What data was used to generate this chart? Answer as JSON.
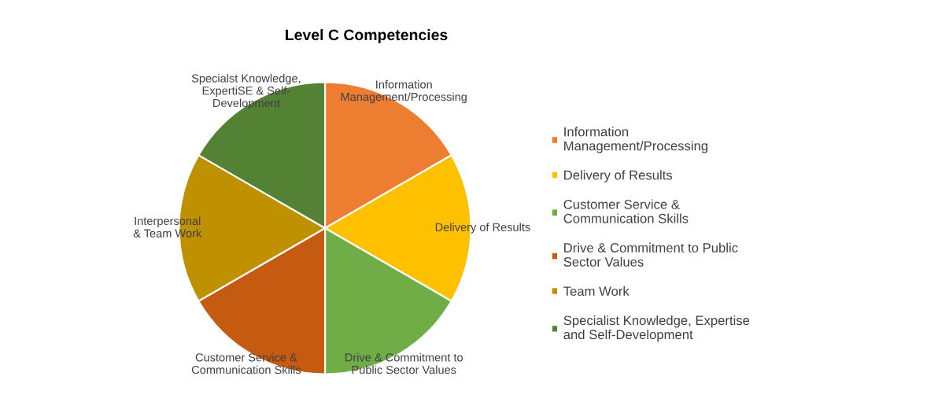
{
  "chart_data": {
    "type": "pie",
    "title": "Level C Competencies",
    "categories": [
      "Information\nManagement/Processing",
      "Delivery of Results",
      "Customer Service &\nCommunication Skills",
      "Drive & Commitment to Public\nSector Values",
      "Team Work",
      "Specialist Knowledge, Expertise\nand Self-Development"
    ],
    "values": [
      16.67,
      16.67,
      16.67,
      16.67,
      16.67,
      16.67
    ],
    "colors": [
      "#ed7d31",
      "#ffc000",
      "#70ad47",
      "#c55a11",
      "#bf9000",
      "#548235"
    ],
    "annotations": [
      "Information\nManagement/Processing",
      "Delivery of Results",
      "Drive & Commitment to\nPublic Sector Values",
      "Customer Service &\nCommunication Skills",
      "Interpersonal\n& Team Work",
      "Specialst Knowledge,\nExpertiSE & Self-\nDevelopment"
    ],
    "legend": "right"
  }
}
